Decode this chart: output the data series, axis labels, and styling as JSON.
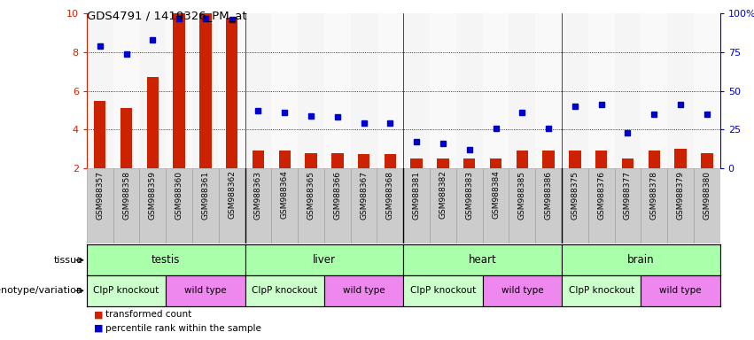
{
  "title": "GDS4791 / 1419326_PM_at",
  "samples": [
    "GSM988357",
    "GSM988358",
    "GSM988359",
    "GSM988360",
    "GSM988361",
    "GSM988362",
    "GSM988363",
    "GSM988364",
    "GSM988365",
    "GSM988366",
    "GSM988367",
    "GSM988368",
    "GSM988381",
    "GSM988382",
    "GSM988383",
    "GSM988384",
    "GSM988385",
    "GSM988386",
    "GSM988375",
    "GSM988376",
    "GSM988377",
    "GSM988378",
    "GSM988379",
    "GSM988380"
  ],
  "bar_values": [
    5.5,
    5.1,
    6.7,
    10.0,
    10.0,
    9.8,
    2.9,
    2.9,
    2.8,
    2.8,
    2.75,
    2.75,
    2.5,
    2.5,
    2.5,
    2.5,
    2.9,
    2.9,
    2.9,
    2.9,
    2.5,
    2.9,
    3.0,
    2.8
  ],
  "blue_values": [
    79,
    74,
    83,
    97,
    97,
    96,
    37,
    36,
    34,
    33,
    29,
    29,
    17,
    16,
    12,
    26,
    36,
    26,
    40,
    41,
    23,
    35,
    41,
    35
  ],
  "tissue_groups": [
    {
      "label": "testis",
      "start": 0,
      "end": 6
    },
    {
      "label": "liver",
      "start": 6,
      "end": 12
    },
    {
      "label": "heart",
      "start": 12,
      "end": 18
    },
    {
      "label": "brain",
      "start": 18,
      "end": 24
    }
  ],
  "genotype_groups": [
    {
      "label": "ClpP knockout",
      "start": 0,
      "end": 3,
      "color": "#ccffcc"
    },
    {
      "label": "wild type",
      "start": 3,
      "end": 6,
      "color": "#ee88ee"
    },
    {
      "label": "ClpP knockout",
      "start": 6,
      "end": 9,
      "color": "#ccffcc"
    },
    {
      "label": "wild type",
      "start": 9,
      "end": 12,
      "color": "#ee88ee"
    },
    {
      "label": "ClpP knockout",
      "start": 12,
      "end": 15,
      "color": "#ccffcc"
    },
    {
      "label": "wild type",
      "start": 15,
      "end": 18,
      "color": "#ee88ee"
    },
    {
      "label": "ClpP knockout",
      "start": 18,
      "end": 21,
      "color": "#ccffcc"
    },
    {
      "label": "wild type",
      "start": 21,
      "end": 24,
      "color": "#ee88ee"
    }
  ],
  "bar_color": "#cc2200",
  "dot_color": "#0000cc",
  "bar_base": 2.0,
  "ylim": [
    2,
    10
  ],
  "y2lim": [
    0,
    100
  ],
  "yticks": [
    2,
    4,
    6,
    8,
    10
  ],
  "y2ticks": [
    0,
    25,
    50,
    75,
    100
  ],
  "y2ticklabels": [
    "0",
    "25",
    "50",
    "75",
    "100%"
  ],
  "tissue_color": "#aaffaa",
  "col_bg_odd": "#d8d8d8",
  "col_bg_even": "#e8e8e8"
}
